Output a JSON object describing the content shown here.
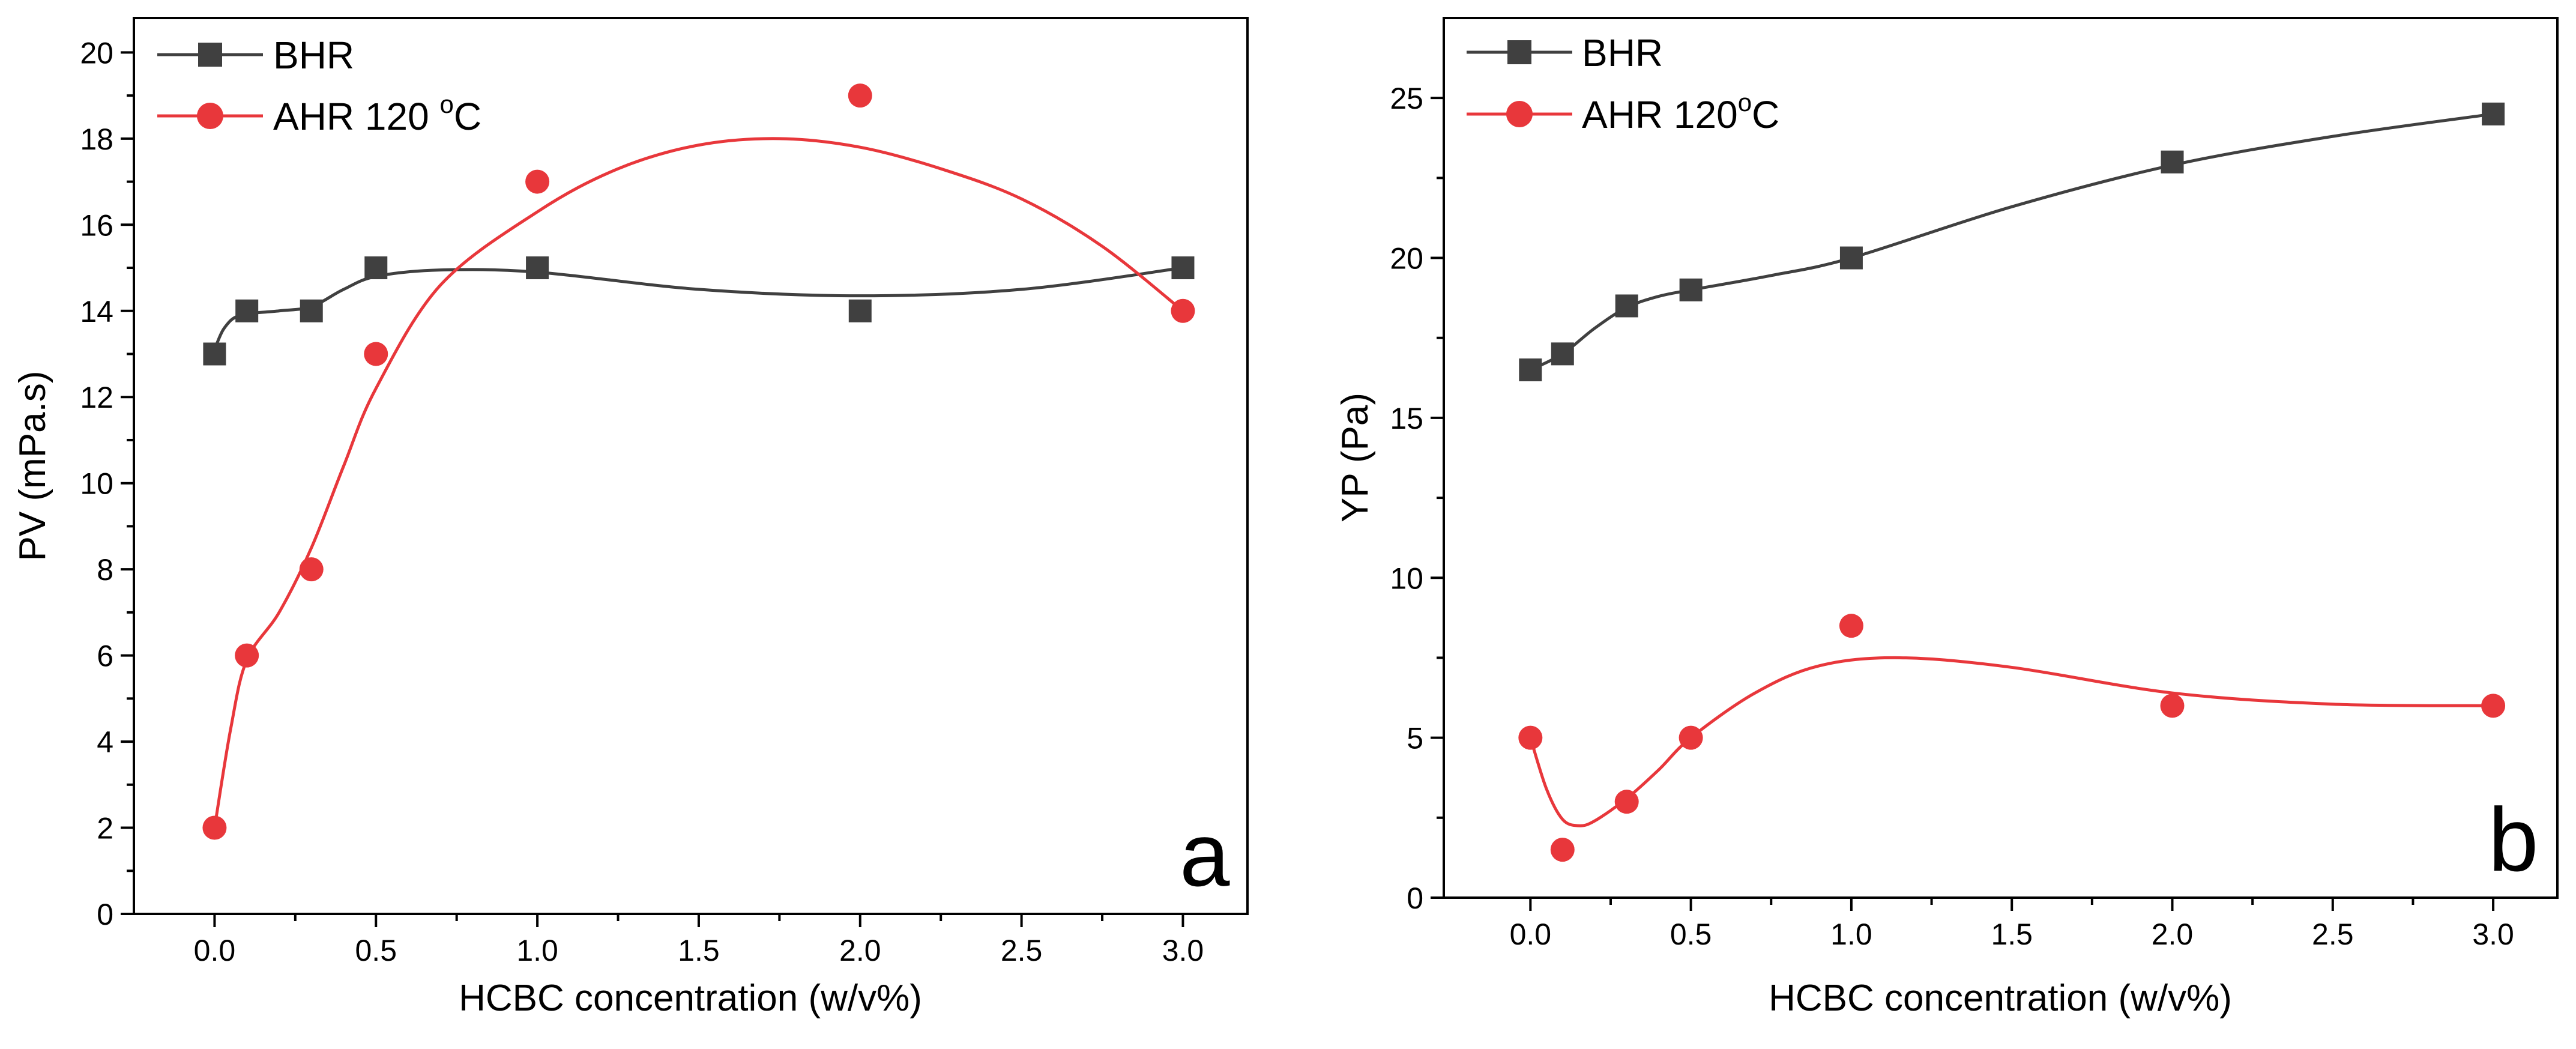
{
  "colors": {
    "bhr": "#404040",
    "ahr": "#e8373b",
    "axis": "#000000"
  },
  "chart_data": [
    {
      "type": "line",
      "panel_label": "a",
      "xlabel": "HCBC concentration (w/v%)",
      "ylabel": "PV (mPa.s)",
      "xlim": [
        -0.25,
        3.2
      ],
      "ylim": [
        0,
        20.8
      ],
      "xticks": [
        0.0,
        0.5,
        1.0,
        1.5,
        2.0,
        2.5,
        3.0
      ],
      "xtick_labels": [
        "0.0",
        "0.5",
        "1.0",
        "1.5",
        "2.0",
        "2.5",
        "3.0"
      ],
      "yticks": [
        0,
        2,
        4,
        6,
        8,
        10,
        12,
        14,
        16,
        18,
        20
      ],
      "ytick_labels": [
        "0",
        "2",
        "4",
        "6",
        "8",
        "10",
        "12",
        "14",
        "16",
        "18",
        "20"
      ],
      "legend_position": "top-left",
      "series": [
        {
          "name": "BHR",
          "legend_label": "BHR",
          "marker": "square",
          "color": "#404040",
          "x": [
            0.0,
            0.1,
            0.3,
            0.5,
            1.0,
            2.0,
            3.0
          ],
          "values": [
            13,
            14,
            14,
            15,
            15,
            14,
            15
          ],
          "fit_curve": [
            [
              0.0,
              13.1
            ],
            [
              0.03,
              13.6
            ],
            [
              0.08,
              13.9
            ],
            [
              0.2,
              14.0
            ],
            [
              0.3,
              14.1
            ],
            [
              0.4,
              14.5
            ],
            [
              0.5,
              14.8
            ],
            [
              0.7,
              14.95
            ],
            [
              1.0,
              14.9
            ],
            [
              1.5,
              14.5
            ],
            [
              2.0,
              14.35
            ],
            [
              2.5,
              14.5
            ],
            [
              3.0,
              15.0
            ]
          ]
        },
        {
          "name": "AHR 120 °C",
          "legend_label": "AHR 120 ",
          "legend_sup": "o",
          "legend_suffix": "C",
          "marker": "circle",
          "color": "#e8373b",
          "x": [
            0.0,
            0.1,
            0.3,
            0.5,
            1.0,
            2.0,
            3.0
          ],
          "values": [
            2,
            6,
            8,
            13,
            17,
            19,
            14
          ],
          "fit_curve": [
            [
              0.0,
              2.0
            ],
            [
              0.05,
              4.3
            ],
            [
              0.1,
              5.9
            ],
            [
              0.2,
              7.0
            ],
            [
              0.3,
              8.5
            ],
            [
              0.4,
              10.4
            ],
            [
              0.5,
              12.2
            ],
            [
              0.7,
              14.6
            ],
            [
              1.0,
              16.3
            ],
            [
              1.25,
              17.3
            ],
            [
              1.5,
              17.85
            ],
            [
              1.75,
              18.0
            ],
            [
              2.0,
              17.8
            ],
            [
              2.25,
              17.3
            ],
            [
              2.5,
              16.6
            ],
            [
              2.75,
              15.5
            ],
            [
              3.0,
              14.0
            ]
          ]
        }
      ]
    },
    {
      "type": "line",
      "panel_label": "b",
      "xlabel": "HCBC concentration (w/v%)",
      "ylabel": "YP (Pa)",
      "xlim": [
        -0.27,
        3.2
      ],
      "ylim": [
        0,
        27.5
      ],
      "xticks": [
        0.0,
        0.5,
        1.0,
        1.5,
        2.0,
        2.5,
        3.0
      ],
      "xtick_labels": [
        "0.0",
        "0.5",
        "1.0",
        "1.5",
        "2.0",
        "2.5",
        "3.0"
      ],
      "yticks": [
        0,
        5,
        10,
        15,
        20,
        25
      ],
      "ytick_labels": [
        "0",
        "5",
        "10",
        "15",
        "20",
        "25"
      ],
      "legend_position": "top-left",
      "series": [
        {
          "name": "BHR",
          "legend_label": "BHR",
          "marker": "square",
          "color": "#404040",
          "x": [
            0.0,
            0.1,
            0.3,
            0.5,
            1.0,
            2.0,
            3.0
          ],
          "values": [
            16.5,
            17,
            18.5,
            19,
            20,
            23,
            24.5
          ],
          "fit_curve": [
            [
              0.0,
              16.5
            ],
            [
              0.1,
              17.0
            ],
            [
              0.2,
              17.8
            ],
            [
              0.3,
              18.45
            ],
            [
              0.4,
              18.8
            ],
            [
              0.5,
              19.0
            ],
            [
              0.75,
              19.45
            ],
            [
              1.0,
              20.0
            ],
            [
              1.5,
              21.6
            ],
            [
              2.0,
              22.9
            ],
            [
              2.5,
              23.8
            ],
            [
              3.0,
              24.5
            ]
          ]
        },
        {
          "name": "AHR 120°C",
          "legend_label": "AHR 120",
          "legend_sup": "o",
          "legend_suffix": "C",
          "marker": "circle",
          "color": "#e8373b",
          "x": [
            0.0,
            0.1,
            0.3,
            0.5,
            1.0,
            2.0,
            3.0
          ],
          "values": [
            5,
            1.5,
            3,
            5,
            8.5,
            6,
            6
          ],
          "fit_curve": [
            [
              0.0,
              5.0
            ],
            [
              0.05,
              3.4
            ],
            [
              0.1,
              2.45
            ],
            [
              0.15,
              2.25
            ],
            [
              0.2,
              2.4
            ],
            [
              0.3,
              3.1
            ],
            [
              0.4,
              4.0
            ],
            [
              0.5,
              5.0
            ],
            [
              0.7,
              6.4
            ],
            [
              0.9,
              7.25
            ],
            [
              1.15,
              7.5
            ],
            [
              1.5,
              7.2
            ],
            [
              2.0,
              6.4
            ],
            [
              2.5,
              6.05
            ],
            [
              3.0,
              6.0
            ]
          ]
        }
      ]
    }
  ]
}
